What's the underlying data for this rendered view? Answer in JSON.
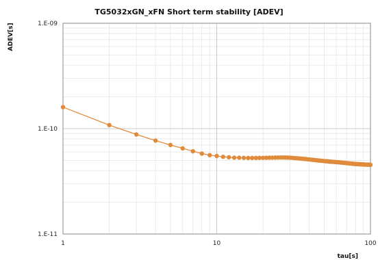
{
  "chart_data": {
    "type": "line",
    "title": "TG5032xGN_xFN Short term stability [ADEV]",
    "xlabel": "tau[s]",
    "ylabel": "ADEV[s]",
    "x_scale": "log",
    "y_scale": "log",
    "xlim": [
      1,
      100
    ],
    "ylim": [
      1e-11,
      1e-09
    ],
    "x_ticks": [
      {
        "value": 1,
        "label": "1"
      },
      {
        "value": 10,
        "label": "10"
      },
      {
        "value": 100,
        "label": "100"
      }
    ],
    "y_ticks": [
      {
        "value": 1e-11,
        "label": "1.E-11"
      },
      {
        "value": 1e-10,
        "label": "1.E-10"
      },
      {
        "value": 1e-09,
        "label": "1.E-09"
      }
    ],
    "grid": true,
    "legend": "none",
    "colors": {
      "series": "#e08a3c",
      "major_grid": "#c8c8c8",
      "minor_grid": "#e6e6e6",
      "axes": "#888888"
    },
    "series": [
      {
        "x": [
          1,
          2,
          3,
          4,
          5,
          6,
          7,
          8,
          9,
          10,
          11,
          12,
          13,
          14,
          15,
          16,
          17,
          18,
          19,
          20,
          21,
          22,
          23,
          24,
          25,
          26,
          27,
          28,
          29,
          30,
          31,
          32,
          33,
          34,
          35,
          36,
          37,
          38,
          39,
          40,
          41,
          42,
          43,
          44,
          45,
          46,
          47,
          48,
          49,
          50,
          51,
          52,
          53,
          54,
          55,
          56,
          57,
          58,
          59,
          60,
          61,
          62,
          63,
          64,
          65,
          66,
          67,
          68,
          69,
          70,
          71,
          72,
          73,
          74,
          75,
          76,
          77,
          78,
          79,
          80,
          81,
          82,
          83,
          84,
          85,
          86,
          87,
          88,
          89,
          90,
          91,
          92,
          93,
          94,
          95,
          96,
          97,
          98,
          99,
          100
        ],
        "y": [
          1.6e-10,
          1.08e-10,
          8.8e-11,
          7.7e-11,
          7e-11,
          6.5e-11,
          6.1e-11,
          5.8e-11,
          5.6e-11,
          5.5e-11,
          5.4e-11,
          5.35e-11,
          5.3e-11,
          5.3e-11,
          5.28e-11,
          5.27e-11,
          5.27e-11,
          5.27e-11,
          5.28e-11,
          5.28e-11,
          5.29e-11,
          5.3e-11,
          5.3e-11,
          5.31e-11,
          5.32e-11,
          5.32e-11,
          5.32e-11,
          5.32e-11,
          5.31e-11,
          5.3e-11,
          5.28e-11,
          5.26e-11,
          5.24e-11,
          5.22e-11,
          5.2e-11,
          5.18e-11,
          5.16e-11,
          5.14e-11,
          5.12e-11,
          5.1e-11,
          5.08e-11,
          5.06e-11,
          5.04e-11,
          5.02e-11,
          5e-11,
          4.98e-11,
          4.97e-11,
          4.95e-11,
          4.94e-11,
          4.92e-11,
          4.91e-11,
          4.9e-11,
          4.88e-11,
          4.87e-11,
          4.86e-11,
          4.85e-11,
          4.84e-11,
          4.83e-11,
          4.82e-11,
          4.81e-11,
          4.8e-11,
          4.79e-11,
          4.78e-11,
          4.77e-11,
          4.76e-11,
          4.75e-11,
          4.74e-11,
          4.73e-11,
          4.72e-11,
          4.71e-11,
          4.7e-11,
          4.69e-11,
          4.68e-11,
          4.67e-11,
          4.66e-11,
          4.65e-11,
          4.64e-11,
          4.63e-11,
          4.62e-11,
          4.62e-11,
          4.61e-11,
          4.61e-11,
          4.6e-11,
          4.6e-11,
          4.59e-11,
          4.59e-11,
          4.58e-11,
          4.58e-11,
          4.57e-11,
          4.57e-11,
          4.57e-11,
          4.56e-11,
          4.56e-11,
          4.56e-11,
          4.55e-11,
          4.55e-11,
          4.55e-11,
          4.55e-11,
          4.54e-11,
          4.54e-11
        ]
      }
    ]
  }
}
